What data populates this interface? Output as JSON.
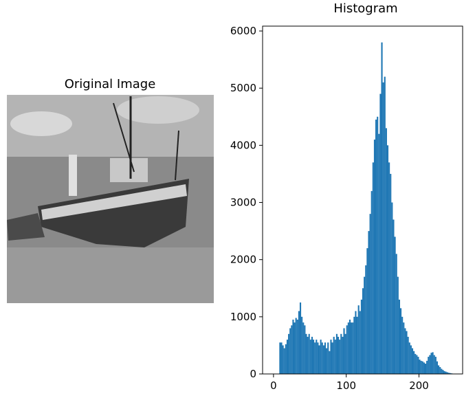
{
  "chart_data": [
    {
      "type": "image",
      "title": "Original Image"
    },
    {
      "type": "histogram",
      "title": "Histogram",
      "color": "#1f77b4",
      "bins": [
        0,
        2,
        4,
        6,
        8,
        10,
        12,
        14,
        16,
        18,
        20,
        22,
        24,
        26,
        28,
        30,
        32,
        34,
        36,
        38,
        40,
        42,
        44,
        46,
        48,
        50,
        52,
        54,
        56,
        58,
        60,
        62,
        64,
        66,
        68,
        70,
        72,
        74,
        76,
        78,
        80,
        82,
        84,
        86,
        88,
        90,
        92,
        94,
        96,
        98,
        100,
        102,
        104,
        106,
        108,
        110,
        112,
        114,
        116,
        118,
        120,
        122,
        124,
        126,
        128,
        130,
        132,
        134,
        136,
        138,
        140,
        142,
        144,
        146,
        148,
        150,
        152,
        154,
        156,
        158,
        160,
        162,
        164,
        166,
        168,
        170,
        172,
        174,
        176,
        178,
        180,
        182,
        184,
        186,
        188,
        190,
        192,
        194,
        196,
        198,
        200,
        202,
        204,
        206,
        208,
        210,
        212,
        214,
        216,
        218,
        220,
        222,
        224,
        226,
        228,
        230,
        232,
        234,
        236,
        238,
        240,
        242,
        244,
        246,
        248,
        250,
        252,
        254,
        256
      ],
      "values": [
        0,
        0,
        0,
        0,
        550,
        550,
        500,
        450,
        520,
        600,
        700,
        800,
        850,
        950,
        900,
        980,
        950,
        1100,
        1250,
        1000,
        900,
        850,
        700,
        650,
        700,
        600,
        650,
        600,
        550,
        600,
        550,
        500,
        600,
        550,
        500,
        550,
        450,
        550,
        400,
        600,
        550,
        650,
        600,
        700,
        650,
        600,
        700,
        650,
        800,
        700,
        850,
        900,
        950,
        900,
        900,
        1000,
        1100,
        1000,
        1200,
        1100,
        1300,
        1500,
        1700,
        1900,
        2200,
        2500,
        2800,
        3200,
        3700,
        4100,
        4450,
        4500,
        4200,
        4900,
        5800,
        5100,
        5200,
        4300,
        4000,
        3700,
        3500,
        3000,
        2700,
        2400,
        2100,
        1700,
        1300,
        1150,
        1000,
        900,
        800,
        750,
        650,
        550,
        500,
        450,
        400,
        350,
        330,
        300,
        250,
        230,
        220,
        200,
        180,
        230,
        300,
        330,
        370,
        380,
        330,
        300,
        220,
        150,
        120,
        90,
        70,
        50,
        40,
        30,
        20,
        15,
        10,
        0,
        0,
        0,
        0,
        0
      ],
      "xlim": [
        -15,
        260
      ],
      "ylim": [
        0,
        6085
      ],
      "xticks": [
        0,
        100,
        200
      ],
      "yticks": [
        0,
        1000,
        2000,
        3000,
        4000,
        5000,
        6000
      ]
    }
  ]
}
